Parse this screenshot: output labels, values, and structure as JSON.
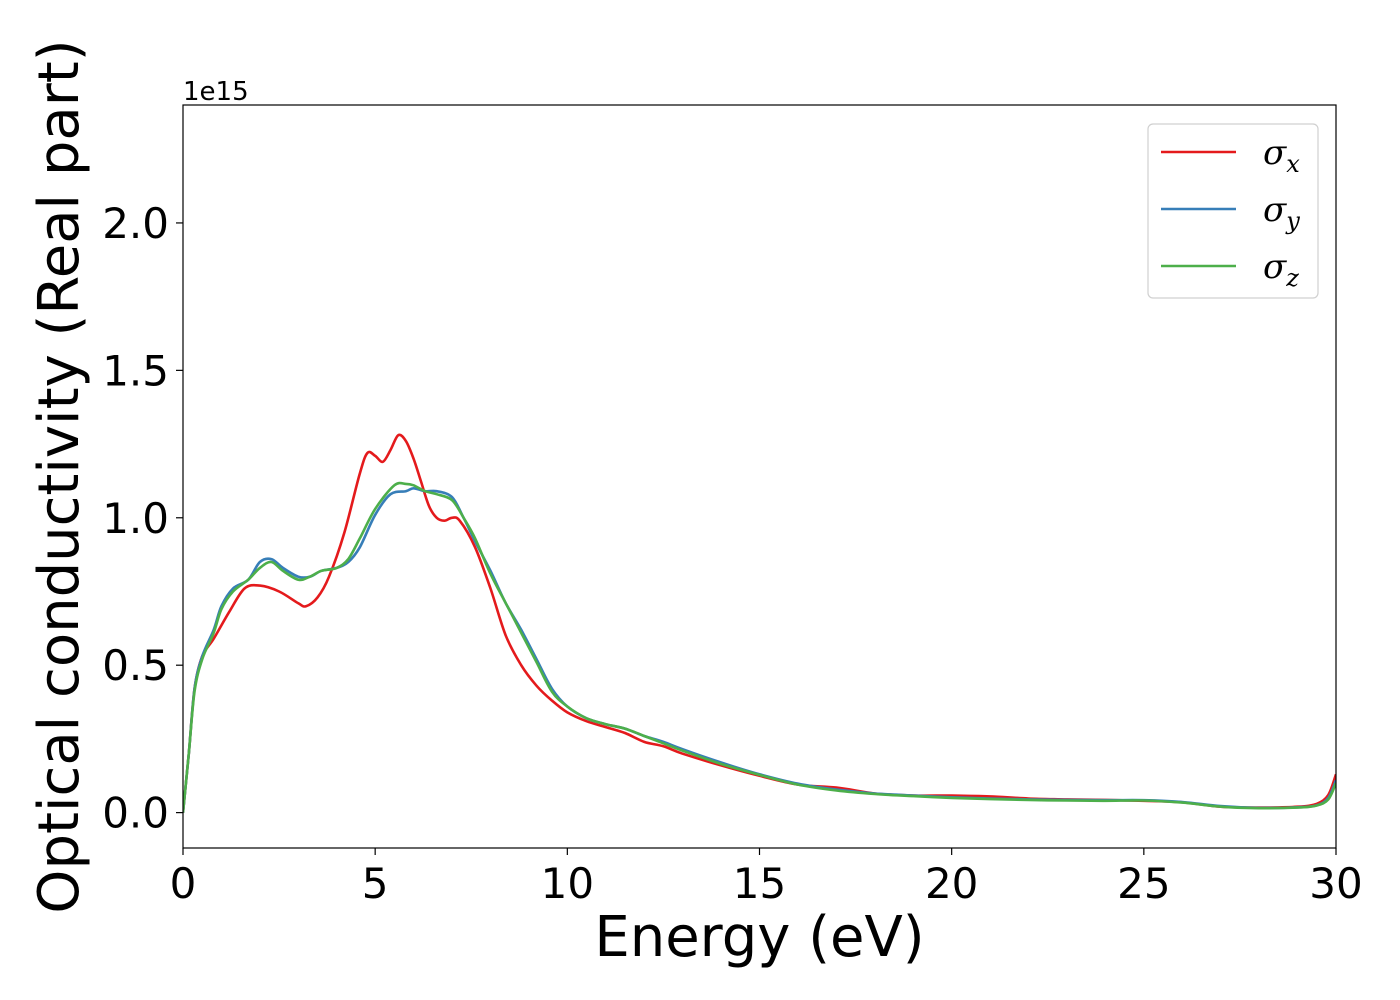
{
  "chart_data": {
    "type": "line",
    "xlabel": "Energy (eV)",
    "ylabel": "Optical conductivity (Real part)",
    "y_offset_label": "1e15",
    "xlim": [
      0,
      30
    ],
    "ylim": [
      -0.12,
      2.4
    ],
    "x_ticks": [
      0,
      5,
      10,
      15,
      20,
      25,
      30
    ],
    "x_tick_labels": [
      "0",
      "5",
      "10",
      "15",
      "20",
      "25",
      "30"
    ],
    "y_ticks": [
      0.0,
      0.5,
      1.0,
      1.5,
      2.0
    ],
    "y_tick_labels": [
      "0.0",
      "0.5",
      "1.0",
      "1.5",
      "2.0"
    ],
    "grid": false,
    "legend_position": "top-right",
    "series": [
      {
        "name": "σx",
        "legend_main": "σ",
        "legend_sub": "x",
        "color": "#e41a1c",
        "x": [
          0,
          0.15,
          0.3,
          0.5,
          0.8,
          1.2,
          1.6,
          2.0,
          2.5,
          3.0,
          3.2,
          3.5,
          3.8,
          4.2,
          4.6,
          4.8,
          5.0,
          5.2,
          5.4,
          5.6,
          5.8,
          6.0,
          6.2,
          6.4,
          6.6,
          6.8,
          7.0,
          7.2,
          7.6,
          8.0,
          8.4,
          8.8,
          9.2,
          9.6,
          10.0,
          10.5,
          11.0,
          11.5,
          12.0,
          12.5,
          13.0,
          14.0,
          15.0,
          16.0,
          17.0,
          18.0,
          19.0,
          20.0,
          21.0,
          22.0,
          23.0,
          24.0,
          25.0,
          26.0,
          27.0,
          28.0,
          29.0,
          29.5,
          29.8,
          30.0
        ],
        "y": [
          0.0,
          0.2,
          0.42,
          0.53,
          0.59,
          0.68,
          0.76,
          0.77,
          0.75,
          0.71,
          0.7,
          0.73,
          0.8,
          0.95,
          1.15,
          1.22,
          1.21,
          1.19,
          1.23,
          1.28,
          1.26,
          1.2,
          1.12,
          1.04,
          1.0,
          0.99,
          1.0,
          0.99,
          0.9,
          0.76,
          0.6,
          0.5,
          0.43,
          0.38,
          0.34,
          0.31,
          0.29,
          0.27,
          0.24,
          0.225,
          0.2,
          0.16,
          0.125,
          0.095,
          0.085,
          0.065,
          0.058,
          0.058,
          0.055,
          0.048,
          0.045,
          0.043,
          0.04,
          0.035,
          0.02,
          0.017,
          0.02,
          0.03,
          0.06,
          0.13
        ]
      },
      {
        "name": "σy",
        "legend_main": "σ",
        "legend_sub": "y",
        "color": "#377eb8",
        "x": [
          0,
          0.15,
          0.3,
          0.5,
          0.8,
          1.0,
          1.3,
          1.7,
          2.0,
          2.3,
          2.6,
          3.0,
          3.3,
          3.6,
          4.0,
          4.3,
          4.6,
          5.0,
          5.4,
          5.8,
          6.0,
          6.3,
          6.6,
          7.0,
          7.3,
          7.6,
          8.0,
          8.4,
          8.8,
          9.2,
          9.6,
          10.0,
          10.5,
          11.0,
          11.5,
          12.0,
          12.5,
          13.0,
          14.0,
          15.0,
          16.0,
          17.0,
          18.0,
          19.0,
          20.0,
          21.0,
          22.0,
          23.0,
          24.0,
          25.0,
          26.0,
          27.0,
          28.0,
          29.0,
          29.5,
          29.8,
          30.0
        ],
        "y": [
          0.0,
          0.2,
          0.42,
          0.53,
          0.62,
          0.7,
          0.76,
          0.79,
          0.85,
          0.86,
          0.83,
          0.8,
          0.8,
          0.82,
          0.83,
          0.85,
          0.9,
          1.01,
          1.08,
          1.09,
          1.1,
          1.09,
          1.09,
          1.07,
          1.0,
          0.92,
          0.82,
          0.71,
          0.62,
          0.52,
          0.42,
          0.36,
          0.32,
          0.3,
          0.285,
          0.26,
          0.24,
          0.215,
          0.17,
          0.13,
          0.098,
          0.078,
          0.065,
          0.058,
          0.052,
          0.048,
          0.045,
          0.043,
          0.042,
          0.042,
          0.036,
          0.022,
          0.016,
          0.018,
          0.025,
          0.05,
          0.11
        ]
      },
      {
        "name": "σz",
        "legend_main": "σ",
        "legend_sub": "z",
        "color": "#4daf4a",
        "x": [
          0,
          0.15,
          0.3,
          0.5,
          0.8,
          1.0,
          1.3,
          1.7,
          2.0,
          2.3,
          2.6,
          3.0,
          3.3,
          3.6,
          4.0,
          4.3,
          4.6,
          5.0,
          5.5,
          5.8,
          6.0,
          6.3,
          6.6,
          7.0,
          7.3,
          7.6,
          8.0,
          8.4,
          8.8,
          9.2,
          9.6,
          10.0,
          10.5,
          11.0,
          11.5,
          12.0,
          12.5,
          13.0,
          14.0,
          15.0,
          16.0,
          17.0,
          18.0,
          19.0,
          20.0,
          21.0,
          22.0,
          23.0,
          24.0,
          25.0,
          26.0,
          27.0,
          28.0,
          29.0,
          29.5,
          29.8,
          30.0
        ],
        "y": [
          0.0,
          0.2,
          0.41,
          0.52,
          0.61,
          0.69,
          0.75,
          0.79,
          0.83,
          0.85,
          0.82,
          0.79,
          0.8,
          0.82,
          0.83,
          0.86,
          0.93,
          1.03,
          1.11,
          1.115,
          1.11,
          1.09,
          1.08,
          1.06,
          1.0,
          0.93,
          0.81,
          0.71,
          0.61,
          0.51,
          0.41,
          0.36,
          0.32,
          0.3,
          0.285,
          0.26,
          0.235,
          0.21,
          0.165,
          0.128,
          0.095,
          0.075,
          0.063,
          0.056,
          0.05,
          0.046,
          0.043,
          0.041,
          0.04,
          0.041,
          0.034,
          0.02,
          0.015,
          0.017,
          0.024,
          0.045,
          0.1
        ]
      }
    ]
  }
}
